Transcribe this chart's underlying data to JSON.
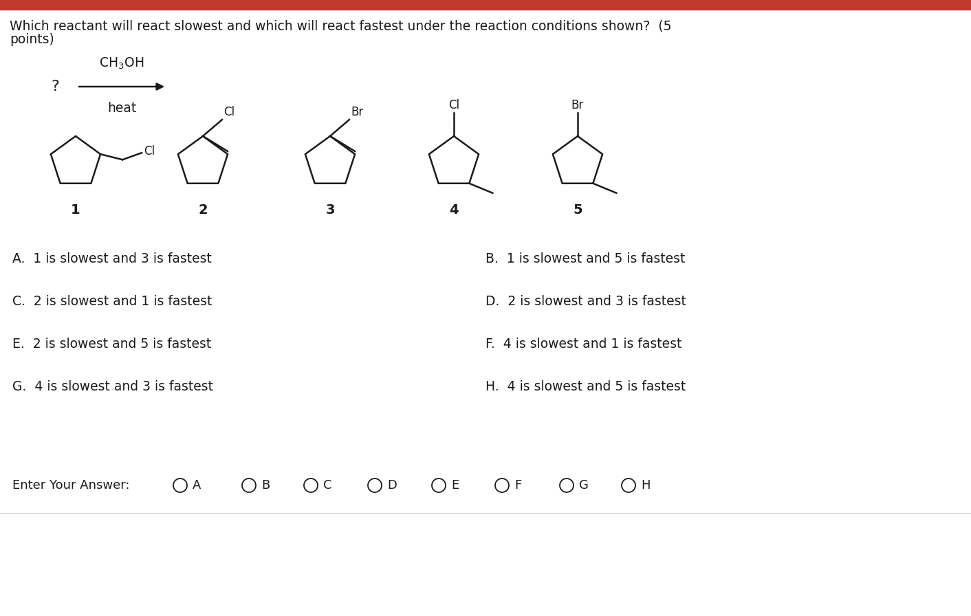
{
  "title_bar_color": "#c0392b",
  "bg_color": "#ffffff",
  "question_text_line1": "Which reactant will react slowest and which will react fastest under the reaction conditions shown?  (5",
  "question_text_line2": "points)",
  "question_fontsize": 13.5,
  "choices": [
    [
      "A.  1 is slowest and 3 is fastest",
      "B.  1 is slowest and 5 is fastest"
    ],
    [
      "C.  2 is slowest and 1 is fastest",
      "D.  2 is slowest and 3 is fastest"
    ],
    [
      "E.  2 is slowest and 5 is fastest",
      "F.  4 is slowest and 1 is fastest"
    ],
    [
      "G.  4 is slowest and 3 is fastest",
      "H.  4 is slowest and 5 is fastest"
    ]
  ],
  "answer_labels": [
    "A",
    "B",
    "C",
    "D",
    "E",
    "F",
    "G",
    "H"
  ],
  "text_color": "#1a1a1a",
  "line_color": "#1a1a1a",
  "choice_fontsize": 13.5,
  "label_fontsize": 13
}
